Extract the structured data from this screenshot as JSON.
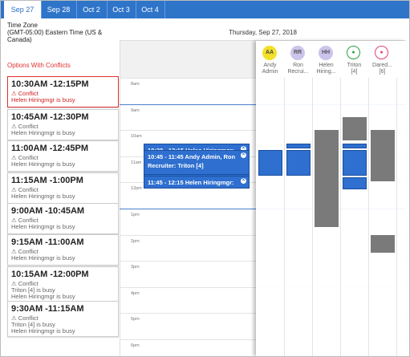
{
  "tabs": [
    "Sep 27",
    "Sep 28",
    "Oct 2",
    "Oct 3",
    "Oct 4"
  ],
  "timezone": {
    "label": "Time Zone",
    "value": "(GMT-05:00) Eastern Time (US & Canada)"
  },
  "options_heading": "Options With Conflicts",
  "options": [
    {
      "time": "10:30AM -12:15PM",
      "conflict": "Conflict",
      "details": [
        "Helen Hiringmgr is busy"
      ]
    },
    {
      "time": "10:45AM -12:30PM",
      "conflict": "Conflict",
      "details": [
        "Helen Hiringmgr is busy"
      ]
    },
    {
      "time": "11:00AM -12:45PM",
      "conflict": "Conflict",
      "details": [
        "Helen Hiringmgr is busy"
      ]
    },
    {
      "time": "11:15AM -1:00PM",
      "conflict": "Conflict",
      "details": [
        "Helen Hiringmgr is busy"
      ]
    },
    {
      "time": "9:00AM -10:45AM",
      "conflict": "Conflict",
      "details": [
        "Helen Hiringmgr is busy"
      ]
    },
    {
      "time": "9:15AM -11:00AM",
      "conflict": "Conflict",
      "details": [
        "Helen Hiringmgr is busy"
      ]
    },
    {
      "time": "10:15AM -12:00PM",
      "conflict": "Conflict",
      "details": [
        "Triton [4] is busy",
        "Helen Hiringmgr is busy"
      ]
    },
    {
      "time": "9:30AM -11:15AM",
      "conflict": "Conflict",
      "details": [
        "Triton [4] is busy",
        "Helen Hiringmgr is busy"
      ]
    }
  ],
  "calendar": {
    "date": "Thursday, Sep 27, 2018",
    "hours": [
      "8am",
      "9am",
      "10am",
      "11am",
      "12pm",
      "1pm",
      "2pm",
      "3pm",
      "4pm",
      "5pm",
      "6pm"
    ],
    "attendees": [
      {
        "initials": "AA",
        "name": [
          "Andy",
          "Admin"
        ]
      },
      {
        "initials": "RR",
        "name": [
          "Ron",
          "Recrui..."
        ]
      },
      {
        "initials": "HH",
        "name": [
          "Helen",
          "Hiring..."
        ]
      },
      {
        "name": [
          "Triton",
          "[4]"
        ]
      },
      {
        "name": [
          "Dared...",
          "[6]"
        ]
      }
    ],
    "events": [
      "10:30 - 12:15 Helen Hiringmgr: Triton",
      "10:45 - 11:45 Andy Admin, Ron Recruiter: Triton [4]",
      "11:45 - 12:15 Helen Hiringmgr:"
    ]
  }
}
